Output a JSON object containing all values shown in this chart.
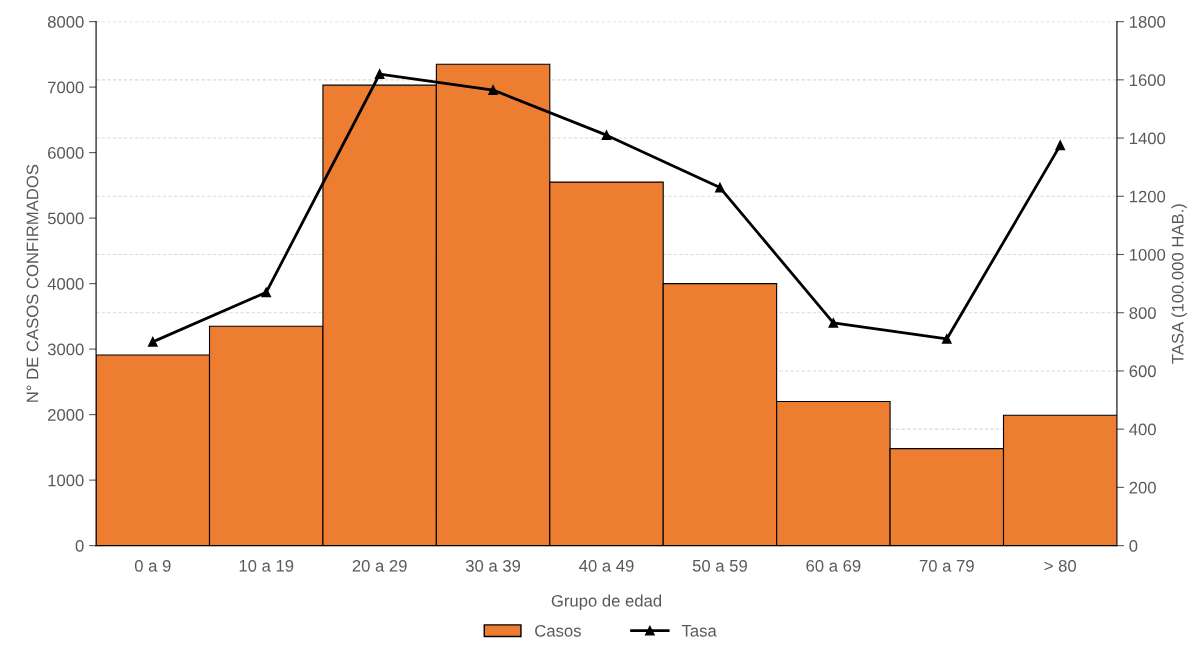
{
  "chart_data": {
    "type": "bar",
    "xlabel": "Grupo de edad",
    "ylabel": "N° DE CASOS CONFIRMADOS",
    "y2label": "TASA (100.000 HAB.)",
    "categories": [
      "0 a 9",
      "10 a 19",
      "20 a 29",
      "30 a 39",
      "40 a 49",
      "50 a 59",
      "60 a 69",
      "70 a 79",
      "> 80"
    ],
    "series": [
      {
        "name": "Casos",
        "color": "#ed7d31",
        "values": [
          2910,
          3350,
          7030,
          7350,
          5550,
          4000,
          2200,
          1480,
          1990
        ]
      },
      {
        "name": "Tasa",
        "type": "line",
        "axis": "y2",
        "color": "#000000",
        "marker": "triangle",
        "line_style": "solid",
        "values": [
          700,
          870,
          1620,
          1565,
          1410,
          1230,
          765,
          710,
          1375
        ]
      }
    ],
    "ylim": [
      0,
      8000
    ],
    "yticks": [
      0,
      1000,
      2000,
      3000,
      4000,
      5000,
      6000,
      7000,
      8000
    ],
    "y2lim": [
      0,
      1800
    ],
    "y2ticks": [
      0,
      200,
      400,
      600,
      800,
      1000,
      1200,
      1400,
      1600,
      1800
    ],
    "grid": "y2",
    "legend": "bottom"
  }
}
